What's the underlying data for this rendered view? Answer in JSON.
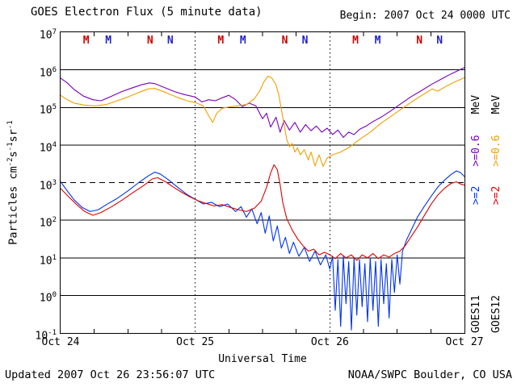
{
  "header": {
    "title": "GOES Electron Flux (5 minute data)",
    "begin_label": "Begin: 2007 Oct 24 0000 UTC"
  },
  "footer": {
    "updated": "Updated 2007 Oct 26 23:56:07 UTC",
    "source": "NOAA/SWPC Boulder, CO USA"
  },
  "axes": {
    "y_label": "Particles cm^-2s^-1sr^-1",
    "x_label": "Universal Time",
    "y_exponents": [
      7,
      6,
      5,
      4,
      3,
      2,
      1,
      0,
      -1
    ],
    "x_ticks": [
      "Oct 24",
      "Oct 25",
      "Oct 26",
      "Oct 27"
    ],
    "threshold_exponent": 3
  },
  "legend": {
    "goes11": {
      "name": "GOES11",
      "e2": ">=2",
      "e06": ">=0.6",
      "mev": "MeV"
    },
    "goes12": {
      "name": "GOES12",
      "e2": ">=2",
      "e06": ">=0.6",
      "mev": "MeV"
    }
  },
  "colors": {
    "purple": "#7700bb",
    "orange": "#f0a000",
    "blue": "#0033ee",
    "red": "#dd0000",
    "marker_red": "#cc0000",
    "marker_blue": "#2222cc",
    "axis": "#000000",
    "background": "#ffffff"
  },
  "markers": [
    {
      "label": "M",
      "color": "#cc0000",
      "day": 0.19
    },
    {
      "label": "M",
      "color": "#2222cc",
      "day": 0.355
    },
    {
      "label": "N",
      "color": "#cc0000",
      "day": 0.665
    },
    {
      "label": "N",
      "color": "#2222cc",
      "day": 0.815
    },
    {
      "label": "M",
      "color": "#cc0000",
      "day": 1.19
    },
    {
      "label": "M",
      "color": "#2222cc",
      "day": 1.355
    },
    {
      "label": "N",
      "color": "#cc0000",
      "day": 1.665
    },
    {
      "label": "N",
      "color": "#2222cc",
      "day": 1.815
    },
    {
      "label": "M",
      "color": "#cc0000",
      "day": 2.19
    },
    {
      "label": "M",
      "color": "#2222cc",
      "day": 2.355
    },
    {
      "label": "N",
      "color": "#cc0000",
      "day": 2.665
    },
    {
      "label": "N",
      "color": "#2222cc",
      "day": 2.815
    }
  ],
  "chart_data": {
    "type": "line",
    "title": "GOES Electron Flux (5 minute data)",
    "x_unit": "days from 2007 Oct 24 0000 UTC",
    "x_ticks": [
      "Oct 24",
      "Oct 25",
      "Oct 26",
      "Oct 27"
    ],
    "xlim_days": [
      0,
      3
    ],
    "y_scale": "log10",
    "ylim_exponents": [
      -1,
      7
    ],
    "ylabel": "Particles cm^-2s^-1sr^-1",
    "xlabel": "Universal Time",
    "threshold_flux": 1000,
    "grid": "horizontal decades solid, day boundaries dotted, 1e3 dashed threshold",
    "series": [
      {
        "name": "GOES11 >=0.6 MeV",
        "color_key": "purple",
        "points": [
          [
            0,
            600000.0
          ],
          [
            0.05,
            450000.0
          ],
          [
            0.1,
            300000.0
          ],
          [
            0.17,
            200000.0
          ],
          [
            0.24,
            160000.0
          ],
          [
            0.3,
            150000.0
          ],
          [
            0.38,
            200000.0
          ],
          [
            0.45,
            260000.0
          ],
          [
            0.52,
            320000.0
          ],
          [
            0.6,
            400000.0
          ],
          [
            0.66,
            450000.0
          ],
          [
            0.7,
            430000.0
          ],
          [
            0.78,
            330000.0
          ],
          [
            0.85,
            260000.0
          ],
          [
            0.92,
            220000.0
          ],
          [
            1.0,
            190000.0
          ],
          [
            1.05,
            140000.0
          ],
          [
            1.1,
            160000.0
          ],
          [
            1.15,
            150000.0
          ],
          [
            1.2,
            180000.0
          ],
          [
            1.25,
            210000.0
          ],
          [
            1.3,
            160000.0
          ],
          [
            1.35,
            105000.0
          ],
          [
            1.4,
            130000.0
          ],
          [
            1.45,
            110000.0
          ],
          [
            1.5,
            50000.0
          ],
          [
            1.53,
            70000.0
          ],
          [
            1.56,
            30000.0
          ],
          [
            1.6,
            55000.0
          ],
          [
            1.63,
            22000.0
          ],
          [
            1.66,
            45000.0
          ],
          [
            1.7,
            25000.0
          ],
          [
            1.74,
            40000.0
          ],
          [
            1.78,
            22000.0
          ],
          [
            1.82,
            35000.0
          ],
          [
            1.86,
            24000.0
          ],
          [
            1.9,
            32000.0
          ],
          [
            1.94,
            22000.0
          ],
          [
            1.98,
            28000.0
          ],
          [
            2.02,
            19000.0
          ],
          [
            2.06,
            25000.0
          ],
          [
            2.1,
            16000.0
          ],
          [
            2.14,
            22000.0
          ],
          [
            2.18,
            19000.0
          ],
          [
            2.22,
            26000.0
          ],
          [
            2.27,
            32000.0
          ],
          [
            2.32,
            42000.0
          ],
          [
            2.38,
            55000.0
          ],
          [
            2.45,
            80000.0
          ],
          [
            2.52,
            120000.0
          ],
          [
            2.6,
            190000.0
          ],
          [
            2.68,
            280000.0
          ],
          [
            2.76,
            420000.0
          ],
          [
            2.84,
            600000.0
          ],
          [
            2.9,
            780000.0
          ],
          [
            2.95,
            950000.0
          ],
          [
            3.0,
            1150000.0
          ]
        ]
      },
      {
        "name": "GOES12 >=0.6 MeV",
        "color_key": "orange",
        "points": [
          [
            0,
            210000.0
          ],
          [
            0.05,
            160000.0
          ],
          [
            0.1,
            130000.0
          ],
          [
            0.18,
            115000.0
          ],
          [
            0.26,
            110000.0
          ],
          [
            0.34,
            120000.0
          ],
          [
            0.42,
            150000.0
          ],
          [
            0.5,
            190000.0
          ],
          [
            0.58,
            250000.0
          ],
          [
            0.65,
            310000.0
          ],
          [
            0.7,
            320000.0
          ],
          [
            0.78,
            250000.0
          ],
          [
            0.86,
            190000.0
          ],
          [
            0.94,
            150000.0
          ],
          [
            1.0,
            135000.0
          ],
          [
            1.06,
            110000.0
          ],
          [
            1.1,
            60000.0
          ],
          [
            1.13,
            40000.0
          ],
          [
            1.16,
            70000.0
          ],
          [
            1.2,
            95000.0
          ],
          [
            1.26,
            105000.0
          ],
          [
            1.32,
            110000.0
          ],
          [
            1.38,
            120000.0
          ],
          [
            1.44,
            170000.0
          ],
          [
            1.48,
            280000.0
          ],
          [
            1.51,
            480000.0
          ],
          [
            1.54,
            680000.0
          ],
          [
            1.57,
            600000.0
          ],
          [
            1.6,
            400000.0
          ],
          [
            1.62,
            220000.0
          ],
          [
            1.64,
            90000.0
          ],
          [
            1.66,
            35000.0
          ],
          [
            1.68,
            14000.0
          ],
          [
            1.7,
            9000.0
          ],
          [
            1.72,
            11000.0
          ],
          [
            1.74,
            6500.0
          ],
          [
            1.76,
            8500.0
          ],
          [
            1.78,
            5500.0
          ],
          [
            1.81,
            7500.0
          ],
          [
            1.84,
            4000.0
          ],
          [
            1.86,
            6500.0
          ],
          [
            1.89,
            2800.0
          ],
          [
            1.92,
            5500.0
          ],
          [
            1.95,
            2700.0
          ],
          [
            1.98,
            4500.0
          ],
          [
            2.02,
            5500.0
          ],
          [
            2.08,
            6500.0
          ],
          [
            2.15,
            9000.0
          ],
          [
            2.22,
            14000.0
          ],
          [
            2.3,
            22000.0
          ],
          [
            2.38,
            38000.0
          ],
          [
            2.46,
            60000.0
          ],
          [
            2.54,
            95000.0
          ],
          [
            2.62,
            150000.0
          ],
          [
            2.7,
            230000.0
          ],
          [
            2.76,
            310000.0
          ],
          [
            2.8,
            270000.0
          ],
          [
            2.86,
            360000.0
          ],
          [
            2.92,
            460000.0
          ],
          [
            3.0,
            620000.0
          ]
        ]
      },
      {
        "name": "GOES11 >=2 MeV",
        "color_key": "blue",
        "points": [
          [
            0,
            1050.0
          ],
          [
            0.05,
            600.0
          ],
          [
            0.1,
            350.0
          ],
          [
            0.16,
            220.0
          ],
          [
            0.22,
            170.0
          ],
          [
            0.28,
            190.0
          ],
          [
            0.34,
            260.0
          ],
          [
            0.42,
            380.0
          ],
          [
            0.5,
            600.0
          ],
          [
            0.58,
            1000.0
          ],
          [
            0.65,
            1500.0
          ],
          [
            0.7,
            1900.0
          ],
          [
            0.74,
            1700.0
          ],
          [
            0.8,
            1200.0
          ],
          [
            0.87,
            750.0
          ],
          [
            0.94,
            480.0
          ],
          [
            1.0,
            360.0
          ],
          [
            1.06,
            270.0
          ],
          [
            1.12,
            300.0
          ],
          [
            1.18,
            230.0
          ],
          [
            1.24,
            270.0
          ],
          [
            1.3,
            170.0
          ],
          [
            1.34,
            230.0
          ],
          [
            1.38,
            120.0
          ],
          [
            1.42,
            200.0
          ],
          [
            1.46,
            80.0
          ],
          [
            1.49,
            160.0
          ],
          [
            1.52,
            45.0
          ],
          [
            1.55,
            130.0
          ],
          [
            1.58,
            28.0
          ],
          [
            1.61,
            70.0
          ],
          [
            1.64,
            18.0
          ],
          [
            1.67,
            35.0
          ],
          [
            1.7,
            13.0
          ],
          [
            1.73,
            26.0
          ],
          [
            1.77,
            11.0
          ],
          [
            1.81,
            19.0
          ],
          [
            1.85,
            8
          ],
          [
            1.89,
            15.0
          ],
          [
            1.93,
            6.5
          ],
          [
            1.97,
            12.0
          ],
          [
            2.0,
            5
          ],
          [
            2.02,
            11.0
          ],
          [
            2.04,
            0.4
          ],
          [
            2.06,
            9
          ],
          [
            2.08,
            0.15
          ],
          [
            2.1,
            11.0
          ],
          [
            2.12,
            0.6
          ],
          [
            2.14,
            8
          ],
          [
            2.16,
            0.12
          ],
          [
            2.18,
            10.0
          ],
          [
            2.2,
            0.3
          ],
          [
            2.22,
            9
          ],
          [
            2.24,
            0.5
          ],
          [
            2.26,
            7
          ],
          [
            2.28,
            0.2
          ],
          [
            2.3,
            10.0
          ],
          [
            2.32,
            0.4
          ],
          [
            2.34,
            8
          ],
          [
            2.36,
            0.15
          ],
          [
            2.38,
            9
          ],
          [
            2.4,
            0.6
          ],
          [
            2.42,
            7
          ],
          [
            2.44,
            0.25
          ],
          [
            2.46,
            9
          ],
          [
            2.48,
            1.2
          ],
          [
            2.5,
            12.0
          ],
          [
            2.52,
            2
          ],
          [
            2.54,
            15.0
          ],
          [
            2.57,
            30.0
          ],
          [
            2.61,
            60.0
          ],
          [
            2.65,
            120.0
          ],
          [
            2.7,
            230.0
          ],
          [
            2.75,
            420.0
          ],
          [
            2.8,
            750.0
          ],
          [
            2.85,
            1150.0
          ],
          [
            2.9,
            1650.0
          ],
          [
            2.94,
            2050.0
          ],
          [
            2.97,
            1850.0
          ],
          [
            3.0,
            1450.0
          ]
        ]
      },
      {
        "name": "GOES12 >=2 MeV",
        "color_key": "red",
        "points": [
          [
            0,
            700.0
          ],
          [
            0.06,
            420.0
          ],
          [
            0.12,
            260.0
          ],
          [
            0.18,
            170.0
          ],
          [
            0.24,
            135.0
          ],
          [
            0.3,
            160.0
          ],
          [
            0.38,
            230.0
          ],
          [
            0.46,
            350.0
          ],
          [
            0.54,
            550.0
          ],
          [
            0.62,
            850.0
          ],
          [
            0.68,
            1250.0
          ],
          [
            0.72,
            1350.0
          ],
          [
            0.78,
            1050.0
          ],
          [
            0.84,
            750.0
          ],
          [
            0.9,
            550.0
          ],
          [
            0.96,
            420.0
          ],
          [
            1.02,
            330.0
          ],
          [
            1.08,
            280.0
          ],
          [
            1.14,
            240.0
          ],
          [
            1.2,
            260.0
          ],
          [
            1.26,
            220.0
          ],
          [
            1.32,
            190.0
          ],
          [
            1.38,
            170.0
          ],
          [
            1.44,
            210.0
          ],
          [
            1.49,
            320.0
          ],
          [
            1.53,
            750.0
          ],
          [
            1.56,
            1800.0
          ],
          [
            1.585,
            3000.0
          ],
          [
            1.61,
            2200.0
          ],
          [
            1.63,
            900.0
          ],
          [
            1.65,
            300.0
          ],
          [
            1.68,
            110.0
          ],
          [
            1.72,
            55.0
          ],
          [
            1.76,
            32.0
          ],
          [
            1.8,
            21.0
          ],
          [
            1.84,
            15.0
          ],
          [
            1.88,
            17.0
          ],
          [
            1.92,
            12.0
          ],
          [
            1.96,
            14.0
          ],
          [
            2.0,
            12.0
          ],
          [
            2.04,
            9.5
          ],
          [
            2.08,
            13.0
          ],
          [
            2.12,
            10.0
          ],
          [
            2.16,
            12.0
          ],
          [
            2.2,
            8.5
          ],
          [
            2.24,
            12.0
          ],
          [
            2.28,
            10.0
          ],
          [
            2.32,
            13.0
          ],
          [
            2.36,
            9.5
          ],
          [
            2.4,
            12.0
          ],
          [
            2.44,
            10.5
          ],
          [
            2.48,
            13.0
          ],
          [
            2.52,
            15.0
          ],
          [
            2.56,
            21.0
          ],
          [
            2.6,
            35.0
          ],
          [
            2.65,
            65.0
          ],
          [
            2.7,
            130.0
          ],
          [
            2.75,
            260.0
          ],
          [
            2.8,
            460.0
          ],
          [
            2.85,
            700.0
          ],
          [
            2.9,
            950.0
          ],
          [
            2.94,
            1050.0
          ],
          [
            2.97,
            920.0
          ],
          [
            3.0,
            860.0
          ]
        ]
      }
    ]
  }
}
